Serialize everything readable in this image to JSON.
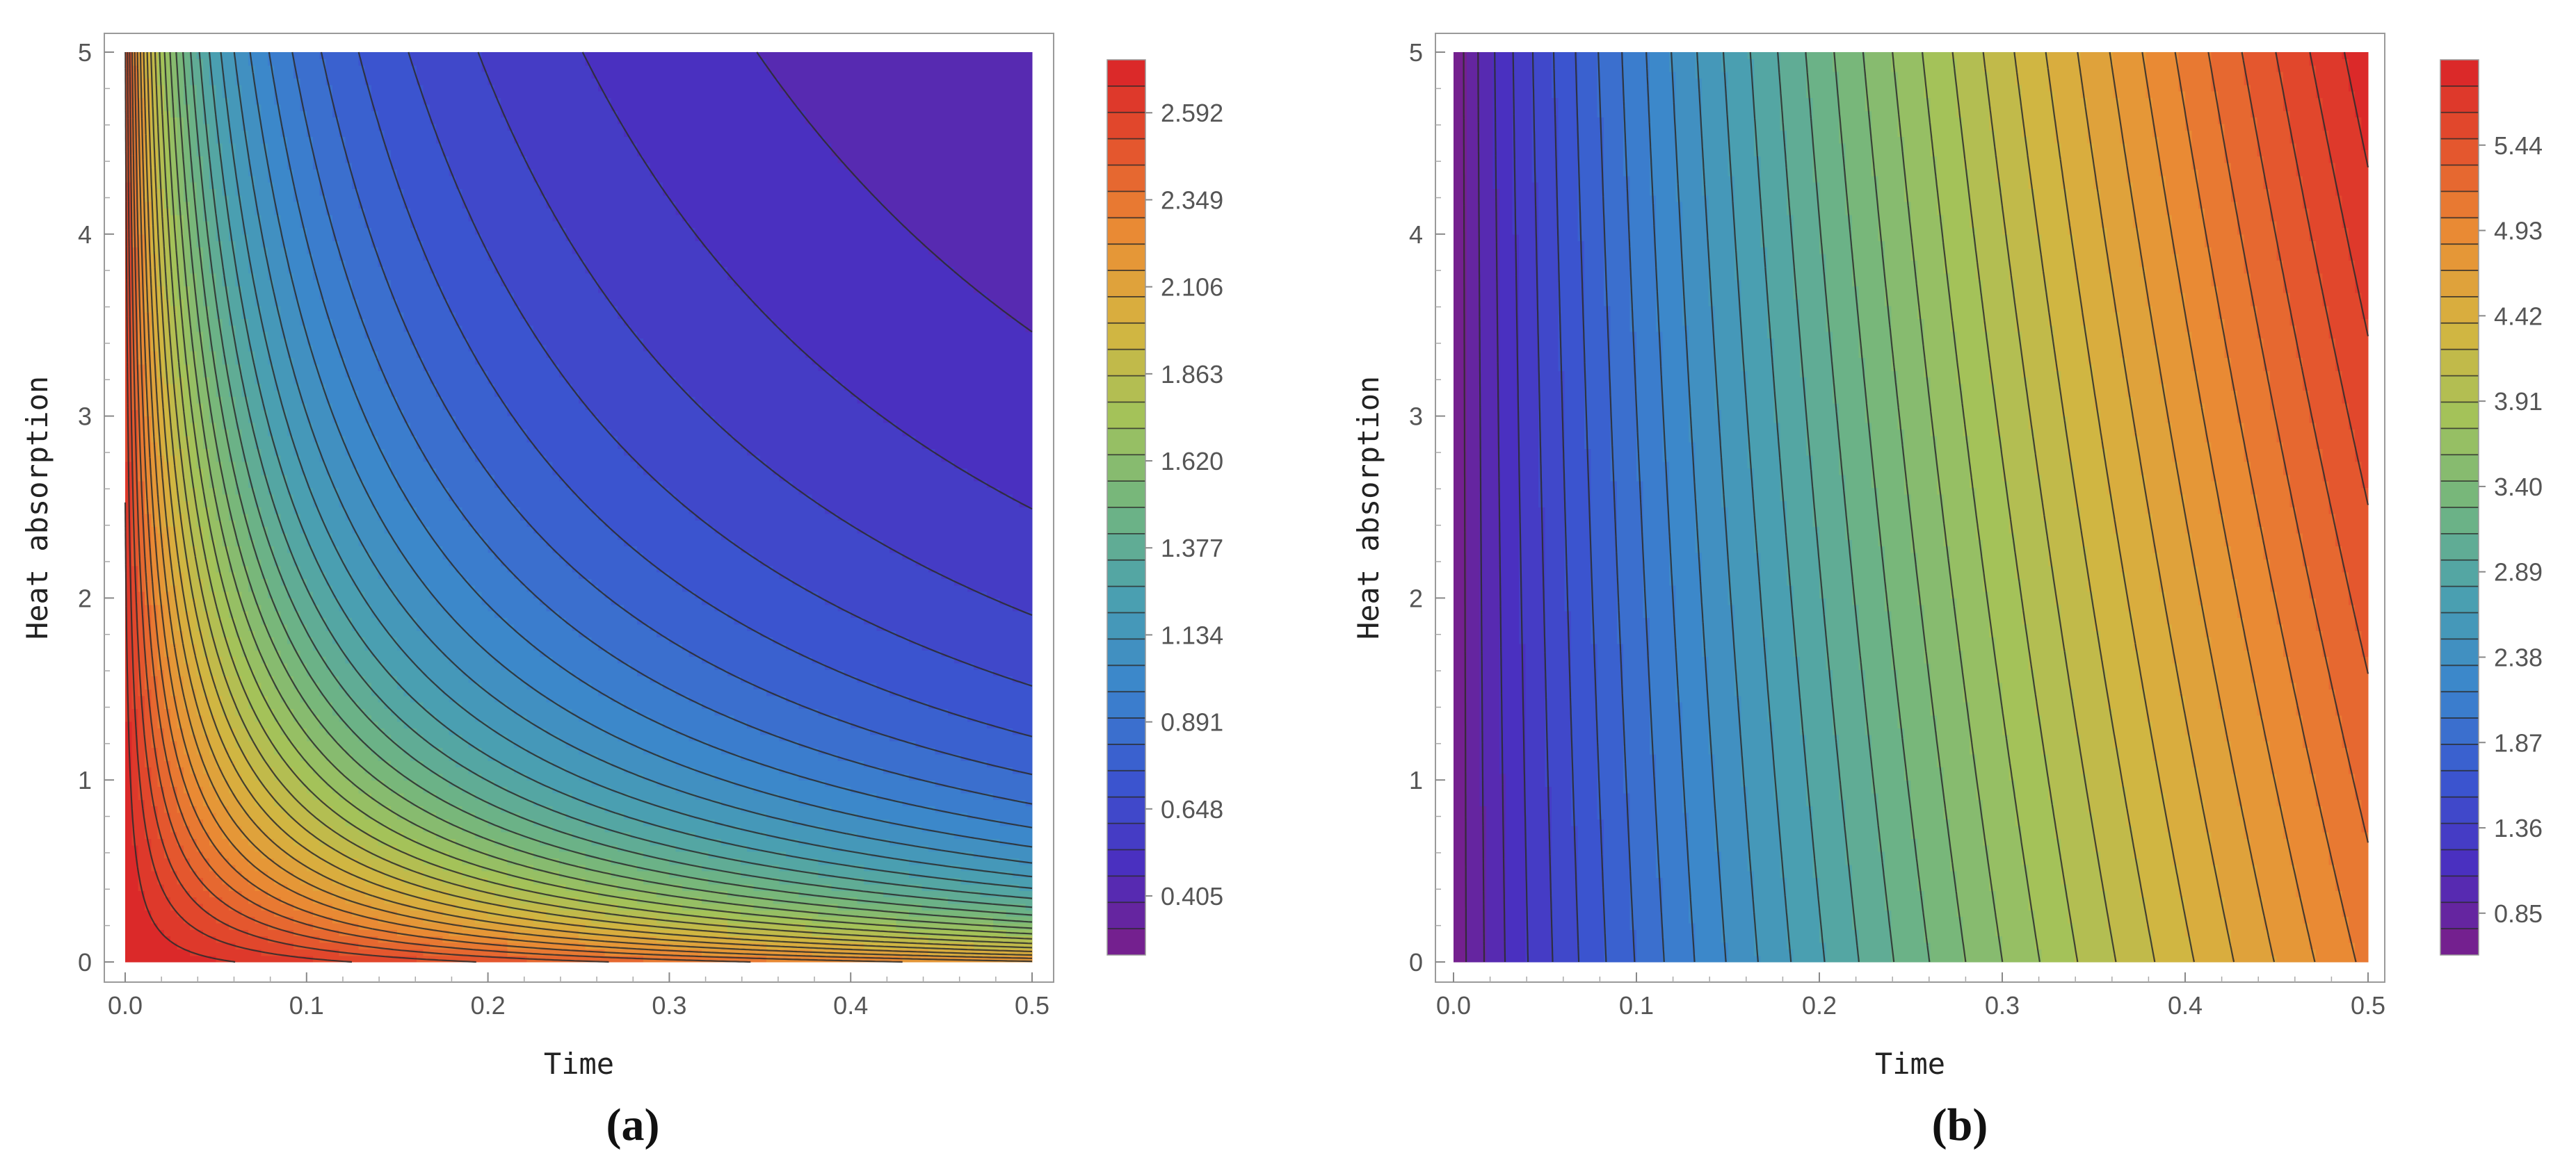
{
  "chart_data": [
    {
      "type": "heatmap",
      "panel": "a",
      "caption": "(a)",
      "title": "",
      "xlabel": "Time",
      "ylabel": "Heat absorption",
      "xlim": [
        0,
        0.5
      ],
      "ylim": [
        0,
        5
      ],
      "x_ticks": [
        "0.0",
        "0.1",
        "0.2",
        "0.3",
        "0.4",
        "0.5"
      ],
      "y_ticks": [
        "0",
        "1",
        "2",
        "3",
        "4",
        "5"
      ],
      "colorbar": {
        "min": 0.24,
        "max": 2.74,
        "labels": [
          "2.592",
          "2.349",
          "2.106",
          "1.863",
          "1.620",
          "1.377",
          "1.134",
          "0.891",
          "0.648",
          "0.405"
        ],
        "label_values": [
          2.592,
          2.349,
          2.106,
          1.863,
          1.62,
          1.377,
          1.134,
          0.891,
          0.648,
          0.405
        ]
      },
      "contour_levels": 34,
      "field": "decreasing from 2.7 at the origin (bottom-left, red) to about 0.3 at top-right (purple); contours are hyperbola-like curves bending toward the axes",
      "colormap": [
        "#7b1d87",
        "#4a2fc0",
        "#3a58d0",
        "#3b86cc",
        "#4aa0b0",
        "#71b580",
        "#a3c25a",
        "#d4b540",
        "#ea8f35",
        "#e4552e",
        "#d92228"
      ],
      "grid": false,
      "legend": "colorbar right"
    },
    {
      "type": "heatmap",
      "panel": "b",
      "caption": "(b)",
      "title": "",
      "xlabel": "Time",
      "ylabel": "Heat absorption",
      "xlim": [
        0,
        0.5
      ],
      "ylim": [
        0,
        5
      ],
      "x_ticks": [
        "0.0",
        "0.1",
        "0.2",
        "0.3",
        "0.4",
        "0.5"
      ],
      "y_ticks": [
        "0",
        "1",
        "2",
        "3",
        "4",
        "5"
      ],
      "colorbar": {
        "min": 0.6,
        "max": 5.95,
        "labels": [
          "5.44",
          "4.93",
          "4.42",
          "3.91",
          "3.40",
          "2.89",
          "2.38",
          "1.87",
          "1.36",
          "0.85"
        ],
        "label_values": [
          5.44,
          4.93,
          4.42,
          3.91,
          3.4,
          2.89,
          2.38,
          1.87,
          1.36,
          0.85
        ]
      },
      "contour_levels": 34,
      "field": "increasing from about 0.6 at Time 0 (purple, left) to about 5.9 at top-right (red); contours nearly vertical, curving toward larger Time at low Heat absorption",
      "colormap": [
        "#7b1d87",
        "#4a2fc0",
        "#3a58d0",
        "#3b86cc",
        "#4aa0b0",
        "#71b580",
        "#a3c25a",
        "#d4b540",
        "#ea8f35",
        "#e4552e",
        "#d92228"
      ],
      "grid": false,
      "legend": "colorbar right"
    }
  ]
}
